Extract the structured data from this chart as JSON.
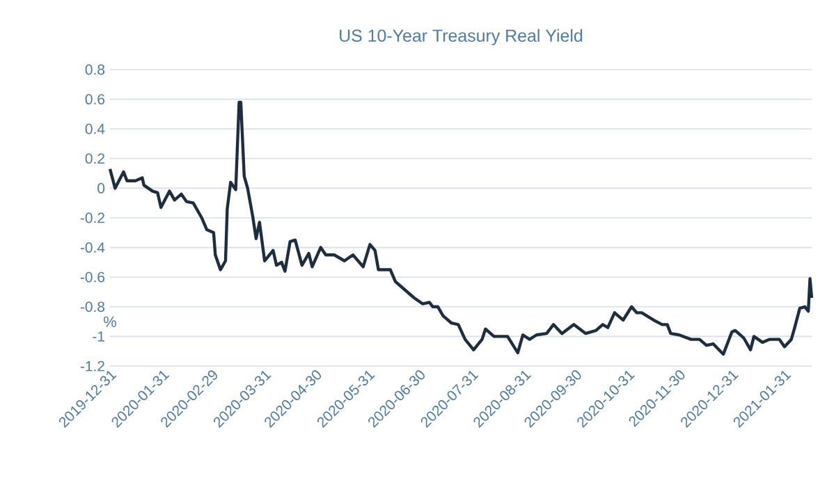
{
  "chart_data": {
    "type": "line",
    "title": "US 10-Year Treasury Real Yield",
    "ylabel": "%",
    "x": [
      "2019-12-31",
      "2020-01-03",
      "2020-01-08",
      "2020-01-10",
      "2020-01-15",
      "2020-01-19",
      "2020-01-20",
      "2020-01-25",
      "2020-01-28",
      "2020-01-30",
      "2020-02-04",
      "2020-02-07",
      "2020-02-11",
      "2020-02-14",
      "2020-02-18",
      "2020-02-23",
      "2020-02-26",
      "2020-03-01",
      "2020-03-02",
      "2020-03-05",
      "2020-03-08",
      "2020-03-09",
      "2020-03-11",
      "2020-03-14",
      "2020-03-16",
      "2020-03-17",
      "2020-03-19",
      "2020-03-21",
      "2020-03-24",
      "2020-03-26",
      "2020-03-28",
      "2020-03-31",
      "2020-04-05",
      "2020-04-07",
      "2020-04-10",
      "2020-04-12",
      "2020-04-15",
      "2020-04-18",
      "2020-04-22",
      "2020-04-26",
      "2020-04-28",
      "2020-05-03",
      "2020-05-06",
      "2020-05-11",
      "2020-05-17",
      "2020-05-22",
      "2020-05-28",
      "2020-06-01",
      "2020-06-04",
      "2020-06-06",
      "2020-06-13",
      "2020-06-16",
      "2020-06-19",
      "2020-06-23",
      "2020-06-27",
      "2020-07-02",
      "2020-07-06",
      "2020-07-08",
      "2020-07-11",
      "2020-07-14",
      "2020-07-19",
      "2020-07-23",
      "2020-07-27",
      "2020-08-01",
      "2020-08-06",
      "2020-08-08",
      "2020-08-13",
      "2020-08-17",
      "2020-08-21",
      "2020-08-27",
      "2020-08-30",
      "2020-09-03",
      "2020-09-07",
      "2020-09-13",
      "2020-09-17",
      "2020-09-22",
      "2020-09-29",
      "2020-10-06",
      "2020-10-12",
      "2020-10-16",
      "2020-10-19",
      "2020-10-23",
      "2020-10-28",
      "2020-11-02",
      "2020-11-05",
      "2020-11-08",
      "2020-11-15",
      "2020-11-20",
      "2020-11-23",
      "2020-11-25",
      "2020-11-30",
      "2020-12-07",
      "2020-12-12",
      "2020-12-16",
      "2020-12-20",
      "2020-12-26",
      "2020-12-31",
      "2021-01-02",
      "2021-01-07",
      "2021-01-11",
      "2021-01-13",
      "2021-01-18",
      "2021-01-22",
      "2021-01-28",
      "2021-01-31",
      "2021-02-04",
      "2021-02-06",
      "2021-02-09",
      "2021-02-12",
      "2021-02-14",
      "2021-02-15",
      "2021-02-16"
    ],
    "series": [
      {
        "color": "#1f2e3f",
        "values": [
          0.13,
          0.0,
          0.11,
          0.05,
          0.05,
          0.07,
          0.02,
          -0.02,
          -0.03,
          -0.13,
          -0.02,
          -0.08,
          -0.04,
          -0.09,
          -0.1,
          -0.2,
          -0.28,
          -0.3,
          -0.45,
          -0.55,
          -0.49,
          -0.14,
          0.04,
          -0.01,
          0.58,
          0.58,
          0.08,
          0.0,
          -0.19,
          -0.34,
          -0.23,
          -0.49,
          -0.42,
          -0.52,
          -0.5,
          -0.56,
          -0.36,
          -0.35,
          -0.52,
          -0.44,
          -0.53,
          -0.4,
          -0.45,
          -0.45,
          -0.49,
          -0.45,
          -0.53,
          -0.38,
          -0.42,
          -0.55,
          -0.55,
          -0.63,
          -0.66,
          -0.7,
          -0.74,
          -0.78,
          -0.77,
          -0.8,
          -0.8,
          -0.86,
          -0.91,
          -0.92,
          -1.02,
          -1.09,
          -1.02,
          -0.95,
          -1.0,
          -1.0,
          -1.0,
          -1.11,
          -0.99,
          -1.02,
          -0.99,
          -0.98,
          -0.92,
          -0.98,
          -0.92,
          -0.98,
          -0.96,
          -0.92,
          -0.94,
          -0.84,
          -0.89,
          -0.8,
          -0.84,
          -0.84,
          -0.89,
          -0.92,
          -0.92,
          -0.98,
          -0.99,
          -1.02,
          -1.02,
          -1.06,
          -1.05,
          -1.12,
          -0.97,
          -0.96,
          -1.01,
          -1.09,
          -1.0,
          -1.04,
          -1.02,
          -1.02,
          -1.07,
          -1.02,
          -0.94,
          -0.81,
          -0.8,
          -0.83,
          -0.61,
          -0.74
        ]
      }
    ],
    "xlim": [
      "2019-12-31",
      "2021-02-16"
    ],
    "xticks": [
      "2019-12-31",
      "2020-01-31",
      "2020-02-29",
      "2020-03-31",
      "2020-04-30",
      "2020-05-31",
      "2020-06-30",
      "2020-07-31",
      "2020-08-31",
      "2020-09-30",
      "2020-10-31",
      "2020-11-30",
      "2020-12-31",
      "2021-01-31"
    ],
    "ylim": [
      -1.2,
      0.8
    ],
    "yticks": [
      0.8,
      0.6,
      0.4,
      0.2,
      0,
      -0.2,
      -0.4,
      -0.6,
      -0.8,
      -1,
      -1.2
    ],
    "grid": "y",
    "marker": "none",
    "line_style": "solid"
  }
}
